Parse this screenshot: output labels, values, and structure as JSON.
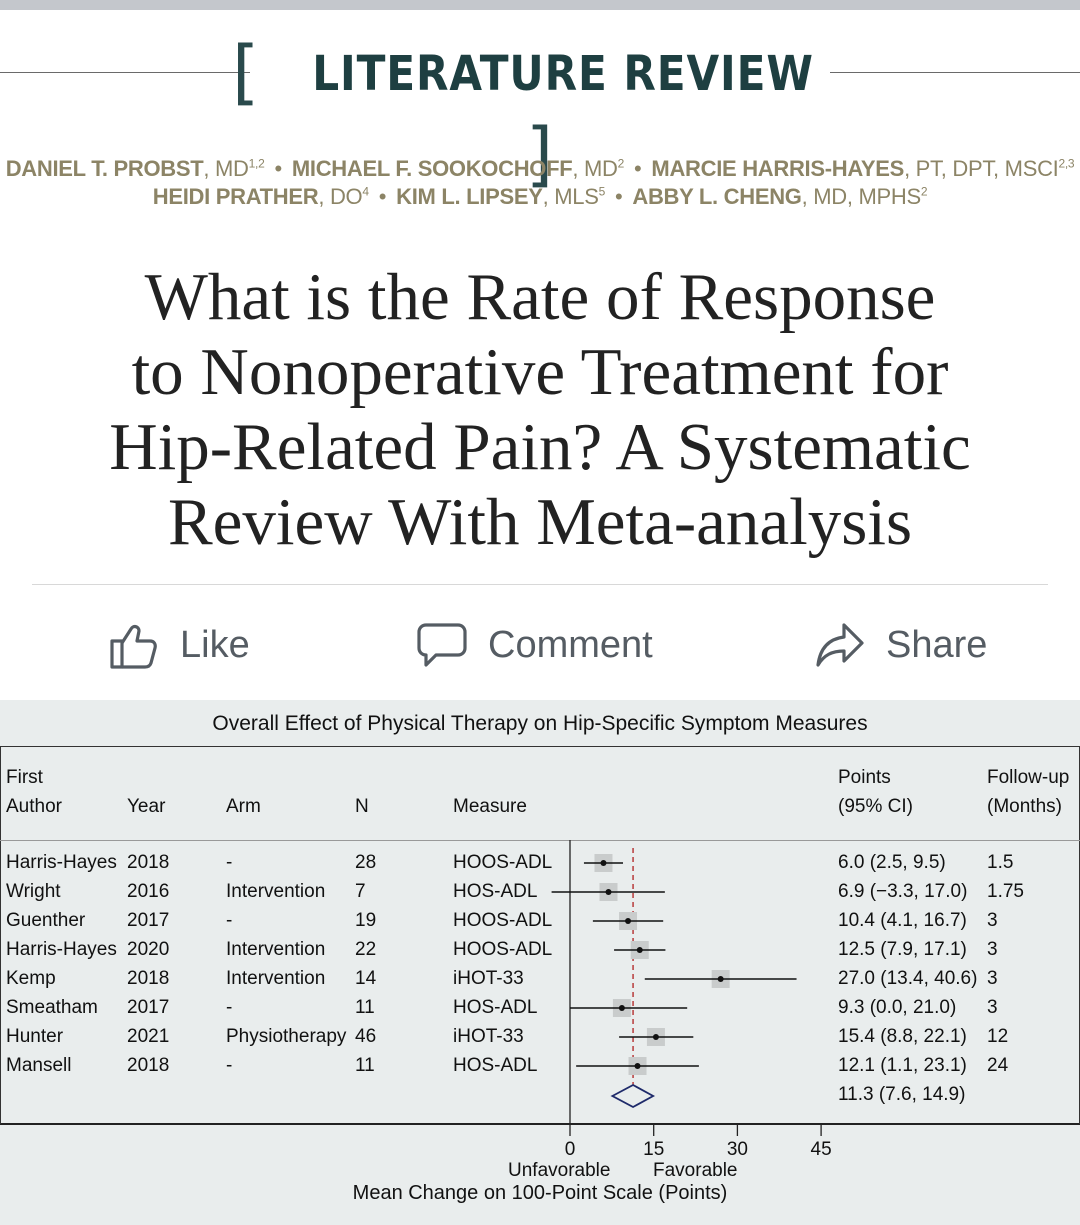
{
  "article": {
    "kicker": "LITERATURE REVIEW",
    "authors_line1": [
      {
        "name": "DANIEL T. PROBST",
        "cred": ", MD",
        "sup": "1,2"
      },
      {
        "name": "MICHAEL F. SOOKOCHOFF",
        "cred": ", MD",
        "sup": "2"
      },
      {
        "name": "MARCIE HARRIS-HAYES",
        "cred": ", PT, DPT, MSCI",
        "sup": "2,3"
      }
    ],
    "authors_line2": [
      {
        "name": "HEIDI PRATHER",
        "cred": ", DO",
        "sup": "4"
      },
      {
        "name": "KIM L. LIPSEY",
        "cred": ", MLS",
        "sup": "5"
      },
      {
        "name": "ABBY L. CHENG",
        "cred": ", MD, MPHS",
        "sup": "2"
      }
    ],
    "title_lines": [
      "What is the Rate of Response",
      "to Nonoperative Treatment for",
      "Hip-Related Pain? A Systematic",
      "Review With Meta-analysis"
    ]
  },
  "actions": {
    "like": "Like",
    "comment": "Comment",
    "share": "Share",
    "icons": [
      "thumbs-up-icon",
      "comment-bubble-icon",
      "share-arrow-icon"
    ],
    "color": "#555c63"
  },
  "chart_data": {
    "type": "forest",
    "title": "Overall Effect of Physical Therapy on Hip-Specific Symptom Measures",
    "columns": {
      "author": "First\nAuthor",
      "year": "Year",
      "arm": "Arm",
      "n": "N",
      "measure": "Measure",
      "points": "Points\n(95% CI)",
      "followup": "Follow-up\n(Months)"
    },
    "studies": [
      {
        "author": "Harris-Hayes",
        "year": "2018",
        "arm": "-",
        "n": "28",
        "measure": "HOOS-ADL",
        "point": 6.0,
        "lo": 2.5,
        "hi": 9.5,
        "ci_text": "6.0 (2.5, 9.5)",
        "followup": "1.5"
      },
      {
        "author": "Wright",
        "year": "2016",
        "arm": "Intervention",
        "n": "7",
        "measure": "HOS-ADL",
        "point": 6.9,
        "lo": -3.3,
        "hi": 17.0,
        "ci_text": "6.9 (−3.3, 17.0)",
        "followup": "1.75"
      },
      {
        "author": "Guenther",
        "year": "2017",
        "arm": "-",
        "n": "19",
        "measure": "HOOS-ADL",
        "point": 10.4,
        "lo": 4.1,
        "hi": 16.7,
        "ci_text": "10.4 (4.1, 16.7)",
        "followup": "3"
      },
      {
        "author": "Harris-Hayes",
        "year": "2020",
        "arm": "Intervention",
        "n": "22",
        "measure": "HOOS-ADL",
        "point": 12.5,
        "lo": 7.9,
        "hi": 17.1,
        "ci_text": "12.5 (7.9, 17.1)",
        "followup": "3"
      },
      {
        "author": "Kemp",
        "year": "2018",
        "arm": "Intervention",
        "n": "14",
        "measure": "iHOT-33",
        "point": 27.0,
        "lo": 13.4,
        "hi": 40.6,
        "ci_text": "27.0 (13.4, 40.6)",
        "followup": "3"
      },
      {
        "author": "Smeatham",
        "year": "2017",
        "arm": "-",
        "n": "11",
        "measure": "HOS-ADL",
        "point": 9.3,
        "lo": 0.0,
        "hi": 21.0,
        "ci_text": "9.3 (0.0, 21.0)",
        "followup": "3"
      },
      {
        "author": "Hunter",
        "year": "2021",
        "arm": "Physiotherapy",
        "n": "46",
        "measure": "iHOT-33",
        "point": 15.4,
        "lo": 8.8,
        "hi": 22.1,
        "ci_text": "15.4 (8.8, 22.1)",
        "followup": "12"
      },
      {
        "author": "Mansell",
        "year": "2018",
        "arm": "-",
        "n": "11",
        "measure": "HOS-ADL",
        "point": 12.1,
        "lo": 1.1,
        "hi": 23.1,
        "ci_text": "12.1 (1.1, 23.1)",
        "followup": "24"
      }
    ],
    "overall": {
      "point": 11.3,
      "lo": 7.6,
      "hi": 14.9,
      "ci_text": "11.3 (7.6, 14.9)"
    },
    "xticks": [
      0,
      15,
      30,
      45
    ],
    "xlim": [
      0,
      45
    ],
    "xlabel_left": "Unfavorable",
    "xlabel_right": "Favorable",
    "xlabel": "Mean Change on 100-Point Scale (Points)",
    "reference_line": 11.3,
    "colors": {
      "background": "#e9eded",
      "reference": "#b02020",
      "marker_box": "#c9cccc"
    }
  }
}
